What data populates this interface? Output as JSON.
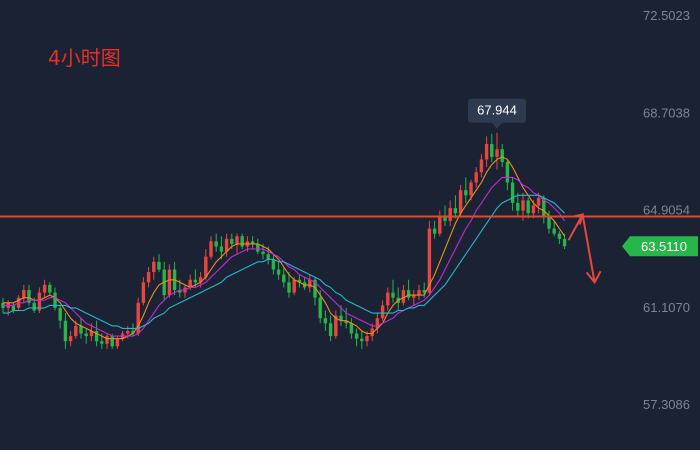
{
  "chart_data": {
    "type": "candlestick",
    "title": "4小时图",
    "y_ticks": [
      72.5023,
      68.7038,
      64.9054,
      61.107,
      57.3086
    ],
    "y_tick_labels": [
      "72.5023",
      "68.7038",
      "64.9054",
      "61.1070",
      "57.3086"
    ],
    "ylim": [
      57.0,
      72.7
    ],
    "current_price": 63.511,
    "current_price_label": "63.5110",
    "high_annotation": 67.944,
    "high_annotation_label": "67.944",
    "resistance_level": 64.67,
    "candles": [
      [
        61.3,
        61.5,
        60.9,
        61.1
      ],
      [
        61.1,
        61.4,
        60.8,
        61.3
      ],
      [
        61.2,
        61.3,
        60.9,
        61.0
      ],
      [
        61.1,
        61.6,
        61.0,
        61.5
      ],
      [
        61.5,
        62.0,
        61.3,
        61.8
      ],
      [
        61.8,
        62.0,
        61.2,
        61.3
      ],
      [
        61.3,
        61.5,
        60.9,
        61.0
      ],
      [
        61.0,
        61.9,
        60.9,
        61.7
      ],
      [
        61.7,
        62.2,
        61.5,
        62.0
      ],
      [
        62.0,
        62.1,
        61.6,
        61.7
      ],
      [
        61.7,
        61.9,
        61.0,
        61.1
      ],
      [
        61.1,
        61.2,
        60.3,
        60.6
      ],
      [
        60.6,
        60.9,
        59.5,
        59.8
      ],
      [
        59.8,
        60.2,
        59.6,
        60.0
      ],
      [
        60.0,
        60.6,
        59.9,
        60.4
      ],
      [
        60.4,
        60.7,
        59.9,
        60.1
      ],
      [
        60.1,
        60.3,
        59.7,
        60.0
      ],
      [
        60.0,
        60.5,
        59.8,
        60.2
      ],
      [
        60.2,
        60.6,
        59.6,
        59.8
      ],
      [
        59.8,
        60.1,
        59.5,
        59.7
      ],
      [
        59.7,
        60.1,
        59.5,
        60.0
      ],
      [
        60.0,
        60.1,
        59.5,
        59.6
      ],
      [
        59.6,
        60.0,
        59.5,
        59.9
      ],
      [
        59.9,
        60.2,
        59.8,
        60.1
      ],
      [
        60.1,
        60.4,
        59.9,
        60.2
      ],
      [
        60.2,
        60.5,
        60.0,
        60.1
      ],
      [
        60.1,
        61.5,
        60.0,
        61.3
      ],
      [
        61.3,
        62.3,
        61.2,
        62.1
      ],
      [
        62.1,
        62.7,
        61.9,
        62.5
      ],
      [
        62.5,
        63.1,
        62.2,
        62.9
      ],
      [
        62.9,
        63.2,
        62.5,
        62.6
      ],
      [
        62.6,
        62.9,
        61.4,
        61.6
      ],
      [
        61.6,
        62.8,
        61.5,
        62.6
      ],
      [
        62.6,
        62.9,
        61.6,
        61.8
      ],
      [
        61.8,
        62.2,
        61.5,
        61.7
      ],
      [
        61.7,
        62.0,
        61.5,
        61.9
      ],
      [
        61.9,
        62.4,
        61.8,
        62.2
      ],
      [
        62.2,
        62.6,
        61.9,
        62.1
      ],
      [
        62.1,
        62.5,
        61.9,
        62.3
      ],
      [
        62.3,
        63.4,
        62.2,
        63.1
      ],
      [
        63.1,
        63.9,
        63.0,
        63.7
      ],
      [
        63.7,
        64.0,
        63.3,
        63.5
      ],
      [
        63.5,
        63.9,
        63.0,
        63.3
      ],
      [
        63.3,
        64.0,
        63.1,
        63.8
      ],
      [
        63.8,
        64.0,
        63.4,
        63.6
      ],
      [
        63.6,
        64.0,
        63.2,
        63.9
      ],
      [
        63.9,
        64.0,
        63.4,
        63.5
      ],
      [
        63.5,
        63.9,
        63.3,
        63.7
      ],
      [
        63.7,
        63.9,
        63.4,
        63.6
      ],
      [
        63.6,
        63.8,
        63.2,
        63.3
      ],
      [
        63.3,
        63.6,
        63.0,
        63.2
      ],
      [
        63.2,
        63.5,
        62.8,
        63.0
      ],
      [
        63.0,
        63.2,
        62.4,
        62.6
      ],
      [
        62.6,
        62.9,
        62.2,
        62.4
      ],
      [
        62.4,
        62.7,
        61.9,
        62.1
      ],
      [
        62.1,
        62.5,
        61.5,
        61.7
      ],
      [
        61.7,
        62.3,
        61.6,
        62.2
      ],
      [
        62.2,
        62.4,
        61.9,
        62.1
      ],
      [
        62.1,
        62.3,
        61.8,
        61.9
      ],
      [
        61.9,
        62.4,
        61.7,
        62.2
      ],
      [
        62.2,
        62.3,
        61.2,
        61.5
      ],
      [
        61.5,
        61.8,
        60.5,
        60.7
      ],
      [
        60.7,
        61.0,
        60.2,
        60.5
      ],
      [
        60.5,
        60.8,
        59.8,
        60.0
      ],
      [
        60.0,
        61.0,
        59.9,
        60.8
      ],
      [
        60.8,
        61.2,
        60.4,
        60.6
      ],
      [
        60.6,
        61.1,
        60.3,
        60.5
      ],
      [
        60.5,
        60.7,
        59.9,
        60.1
      ],
      [
        60.1,
        60.3,
        59.6,
        59.9
      ],
      [
        59.9,
        60.2,
        59.5,
        59.8
      ],
      [
        59.8,
        60.2,
        59.6,
        60.0
      ],
      [
        60.0,
        60.5,
        59.8,
        60.3
      ],
      [
        60.3,
        60.9,
        60.1,
        60.7
      ],
      [
        60.7,
        61.4,
        60.6,
        61.2
      ],
      [
        61.2,
        61.9,
        61.0,
        61.7
      ],
      [
        61.7,
        62.2,
        61.3,
        61.5
      ],
      [
        61.5,
        61.9,
        61.0,
        61.3
      ],
      [
        61.3,
        62.0,
        61.2,
        61.8
      ],
      [
        61.8,
        62.2,
        61.4,
        61.5
      ],
      [
        61.5,
        61.8,
        61.2,
        61.6
      ],
      [
        61.6,
        62.0,
        61.4,
        61.8
      ],
      [
        61.8,
        62.1,
        61.5,
        61.7
      ],
      [
        61.7,
        64.5,
        61.6,
        64.2
      ],
      [
        64.2,
        64.5,
        63.8,
        64.0
      ],
      [
        64.0,
        64.9,
        63.9,
        64.7
      ],
      [
        64.7,
        65.1,
        64.3,
        64.5
      ],
      [
        64.5,
        65.3,
        64.3,
        65.0
      ],
      [
        65.0,
        65.5,
        64.6,
        64.8
      ],
      [
        64.8,
        65.9,
        64.7,
        65.7
      ],
      [
        65.7,
        66.2,
        65.2,
        65.5
      ],
      [
        65.5,
        66.1,
        65.3,
        66.0
      ],
      [
        66.0,
        66.6,
        65.8,
        66.4
      ],
      [
        66.4,
        67.1,
        66.2,
        66.9
      ],
      [
        66.9,
        67.8,
        66.6,
        67.5
      ],
      [
        67.5,
        67.9,
        66.8,
        67.0
      ],
      [
        67.0,
        67.944,
        66.5,
        67.3
      ],
      [
        67.3,
        67.5,
        66.6,
        66.8
      ],
      [
        66.8,
        66.9,
        65.7,
        66.0
      ],
      [
        66.0,
        66.2,
        64.9,
        65.2
      ],
      [
        65.2,
        65.6,
        64.7,
        64.9
      ],
      [
        64.9,
        65.6,
        64.5,
        65.3
      ],
      [
        65.3,
        65.4,
        64.6,
        64.8
      ],
      [
        64.8,
        65.3,
        64.6,
        65.1
      ],
      [
        65.1,
        65.6,
        64.8,
        65.4
      ],
      [
        65.4,
        65.5,
        64.4,
        64.7
      ],
      [
        64.7,
        64.9,
        64.0,
        64.2
      ],
      [
        64.2,
        64.5,
        63.9,
        64.0
      ],
      [
        64.0,
        64.1,
        63.6,
        63.8
      ],
      [
        63.8,
        64.0,
        63.4,
        63.511
      ]
    ],
    "ma_fast": [
      61.3,
      61.3,
      61.3,
      61.4,
      61.5,
      61.5,
      61.4,
      61.4,
      61.5,
      61.6,
      61.5,
      61.3,
      61.0,
      60.7,
      60.5,
      60.4,
      60.3,
      60.2,
      60.1,
      60.0,
      59.9,
      59.9,
      59.9,
      59.9,
      60.0,
      60.1,
      60.4,
      60.8,
      61.3,
      61.7,
      62.0,
      62.1,
      62.2,
      62.2,
      62.1,
      62.0,
      61.9,
      62.0,
      62.1,
      62.3,
      62.6,
      62.9,
      63.1,
      63.3,
      63.5,
      63.6,
      63.6,
      63.6,
      63.6,
      63.6,
      63.5,
      63.4,
      63.2,
      63.0,
      62.7,
      62.4,
      62.2,
      62.1,
      62.0,
      62.0,
      61.9,
      61.6,
      61.3,
      60.9,
      60.7,
      60.6,
      60.6,
      60.5,
      60.4,
      60.2,
      60.1,
      60.1,
      60.3,
      60.5,
      60.9,
      61.2,
      61.4,
      61.5,
      61.6,
      61.6,
      61.6,
      61.6,
      62.0,
      62.4,
      62.9,
      63.4,
      63.9,
      64.4,
      64.8,
      65.1,
      65.4,
      65.7,
      66.0,
      66.4,
      66.7,
      66.9,
      67.0,
      66.9,
      66.6,
      66.2,
      65.8,
      65.5,
      65.2,
      65.0,
      64.9,
      64.7,
      64.5,
      64.2,
      63.9
    ],
    "ma_mid": [
      61.2,
      61.2,
      61.2,
      61.3,
      61.3,
      61.4,
      61.4,
      61.4,
      61.4,
      61.5,
      61.5,
      61.4,
      61.3,
      61.1,
      60.9,
      60.7,
      60.5,
      60.4,
      60.3,
      60.2,
      60.1,
      60.0,
      60.0,
      60.0,
      60.0,
      60.0,
      60.1,
      60.3,
      60.6,
      60.9,
      61.2,
      61.4,
      61.6,
      61.7,
      61.8,
      61.8,
      61.9,
      61.9,
      62.0,
      62.1,
      62.3,
      62.5,
      62.7,
      62.9,
      63.1,
      63.2,
      63.3,
      63.4,
      63.4,
      63.4,
      63.4,
      63.3,
      63.2,
      63.1,
      62.9,
      62.7,
      62.6,
      62.4,
      62.3,
      62.2,
      62.1,
      61.9,
      61.7,
      61.5,
      61.3,
      61.1,
      60.9,
      60.8,
      60.7,
      60.6,
      60.5,
      60.4,
      60.4,
      60.5,
      60.6,
      60.7,
      60.9,
      61.0,
      61.1,
      61.2,
      61.3,
      61.4,
      61.6,
      61.9,
      62.2,
      62.6,
      63.0,
      63.4,
      63.8,
      64.2,
      64.5,
      64.9,
      65.2,
      65.5,
      65.8,
      66.0,
      66.2,
      66.2,
      66.2,
      66.1,
      65.9,
      65.8,
      65.6,
      65.5,
      65.3,
      65.2,
      65.0,
      64.8,
      64.5
    ],
    "ma_slow": [
      60.9,
      60.9,
      61.0,
      61.0,
      61.0,
      61.1,
      61.1,
      61.1,
      61.1,
      61.2,
      61.2,
      61.2,
      61.2,
      61.1,
      61.1,
      61.0,
      60.9,
      60.8,
      60.7,
      60.6,
      60.5,
      60.4,
      60.4,
      60.3,
      60.3,
      60.3,
      60.3,
      60.4,
      60.5,
      60.7,
      60.8,
      60.9,
      61.1,
      61.2,
      61.3,
      61.4,
      61.5,
      61.6,
      61.7,
      61.8,
      61.9,
      62.0,
      62.1,
      62.3,
      62.4,
      62.5,
      62.6,
      62.7,
      62.8,
      62.9,
      62.9,
      63.0,
      63.0,
      62.9,
      62.9,
      62.8,
      62.7,
      62.6,
      62.5,
      62.4,
      62.3,
      62.2,
      62.0,
      61.9,
      61.7,
      61.6,
      61.4,
      61.3,
      61.2,
      61.1,
      61.0,
      60.9,
      60.9,
      60.9,
      60.9,
      60.9,
      61.0,
      61.0,
      61.1,
      61.1,
      61.2,
      61.2,
      61.4,
      61.6,
      61.8,
      62.0,
      62.3,
      62.6,
      62.9,
      63.2,
      63.5,
      63.8,
      64.1,
      64.4,
      64.7,
      65.0,
      65.2,
      65.3,
      65.4,
      65.5,
      65.5,
      65.5,
      65.5,
      65.5,
      65.4,
      65.3,
      65.2,
      65.0,
      64.8
    ],
    "colors": {
      "up": "#e8473f",
      "down": "#27b649",
      "ma_fast": "#ee8f1e",
      "ma_mid": "#c22ad9",
      "ma_slow": "#2ab5cf",
      "resistance": "#e04a33",
      "arrow": "#e8473f",
      "price_tag": "#27b649",
      "title": "#e8302a",
      "tick_text": "#7d8595",
      "background": "#1b2233"
    }
  }
}
